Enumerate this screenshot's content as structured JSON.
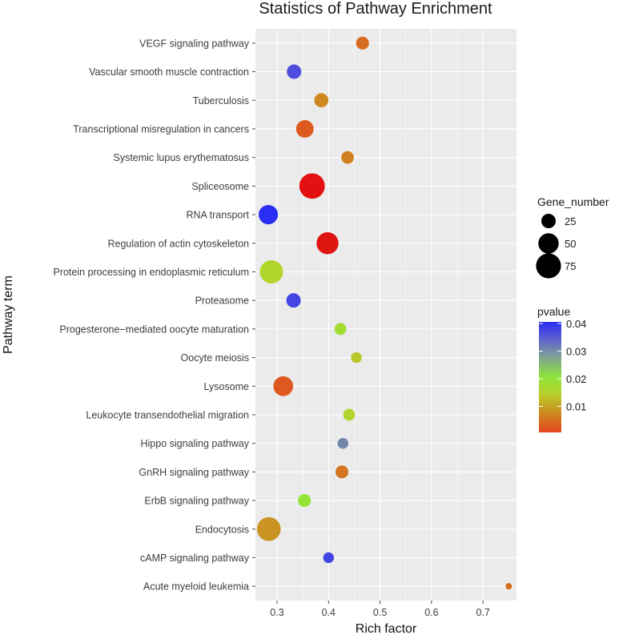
{
  "chart_data": {
    "type": "scatter",
    "title": "Statistics of Pathway Enrichment",
    "xlabel": "Rich factor",
    "ylabel": "Pathway term",
    "xlim": [
      0.258,
      0.765
    ],
    "x_ticks": [
      0.3,
      0.4,
      0.5,
      0.6,
      0.7
    ],
    "x_tick_labels": [
      "0.3",
      "0.4",
      "0.5",
      "0.6",
      "0.7"
    ],
    "grid": true,
    "panel_background": "#ebebeb",
    "grid_color": "#ffffff",
    "points": [
      {
        "term": "VEGF signaling pathway",
        "x": 0.466,
        "pvalue": 0.004,
        "gene_number": 20
      },
      {
        "term": "Vascular smooth muscle contraction",
        "x": 0.333,
        "pvalue": 0.036,
        "gene_number": 25
      },
      {
        "term": "Tuberculosis",
        "x": 0.386,
        "pvalue": 0.007,
        "gene_number": 24
      },
      {
        "term": "Transcriptional misregulation in cancers",
        "x": 0.354,
        "pvalue": 0.002,
        "gene_number": 37
      },
      {
        "term": "Systemic lupus erythematosus",
        "x": 0.437,
        "pvalue": 0.006,
        "gene_number": 19
      },
      {
        "term": "Spliceosome",
        "x": 0.368,
        "pvalue": 0.0004,
        "gene_number": 78
      },
      {
        "term": "RNA transport",
        "x": 0.283,
        "pvalue": 0.04,
        "gene_number": 45
      },
      {
        "term": "Regulation of actin cytoskeleton",
        "x": 0.398,
        "pvalue": 0.0005,
        "gene_number": 58
      },
      {
        "term": "Protein processing in endoplasmic reticulum",
        "x": 0.289,
        "pvalue": 0.015,
        "gene_number": 65
      },
      {
        "term": "Proteasome",
        "x": 0.332,
        "pvalue": 0.037,
        "gene_number": 25
      },
      {
        "term": "Progesterone−mediated oocyte maturation",
        "x": 0.423,
        "pvalue": 0.017,
        "gene_number": 17
      },
      {
        "term": "Oocyte meiosis",
        "x": 0.454,
        "pvalue": 0.013,
        "gene_number": 14
      },
      {
        "term": "Lysosome",
        "x": 0.312,
        "pvalue": 0.002,
        "gene_number": 47
      },
      {
        "term": "Leukocyte transendothelial migration",
        "x": 0.44,
        "pvalue": 0.015,
        "gene_number": 17
      },
      {
        "term": "Hippo signaling pathway",
        "x": 0.428,
        "pvalue": 0.03,
        "gene_number": 14
      },
      {
        "term": "GnRH signaling pathway",
        "x": 0.426,
        "pvalue": 0.005,
        "gene_number": 20
      },
      {
        "term": "ErbB signaling pathway",
        "x": 0.353,
        "pvalue": 0.019,
        "gene_number": 20
      },
      {
        "term": "Endocytosis",
        "x": 0.284,
        "pvalue": 0.008,
        "gene_number": 68
      },
      {
        "term": "cAMP signaling pathway",
        "x": 0.4,
        "pvalue": 0.037,
        "gene_number": 14
      },
      {
        "term": "Acute myeloid leukemia",
        "x": 0.75,
        "pvalue": 0.004,
        "gene_number": 5
      }
    ],
    "size_legend": {
      "title": "Gene_number",
      "labels": [
        "25",
        "50",
        "75"
      ],
      "values": [
        25,
        50,
        75
      ]
    },
    "color_legend": {
      "title": "pvalue",
      "labels": [
        "0.04",
        "0.03",
        "0.02",
        "0.01"
      ],
      "values": [
        0.04,
        0.03,
        0.02,
        0.01
      ],
      "range": [
        0,
        0.04
      ],
      "stops": [
        {
          "v": 0.0,
          "color": "#e5451f"
        },
        {
          "v": 0.006,
          "color": "#d0801f"
        },
        {
          "v": 0.014,
          "color": "#b9d12c"
        },
        {
          "v": 0.02,
          "color": "#8de63a"
        },
        {
          "v": 0.028,
          "color": "#7f9a9b"
        },
        {
          "v": 0.035,
          "color": "#5656d8"
        },
        {
          "v": 0.04,
          "color": "#2a2ef5"
        }
      ],
      "special_colors": {
        "0.0004": "#e30f10",
        "0.0005": "#df1512"
      }
    }
  }
}
